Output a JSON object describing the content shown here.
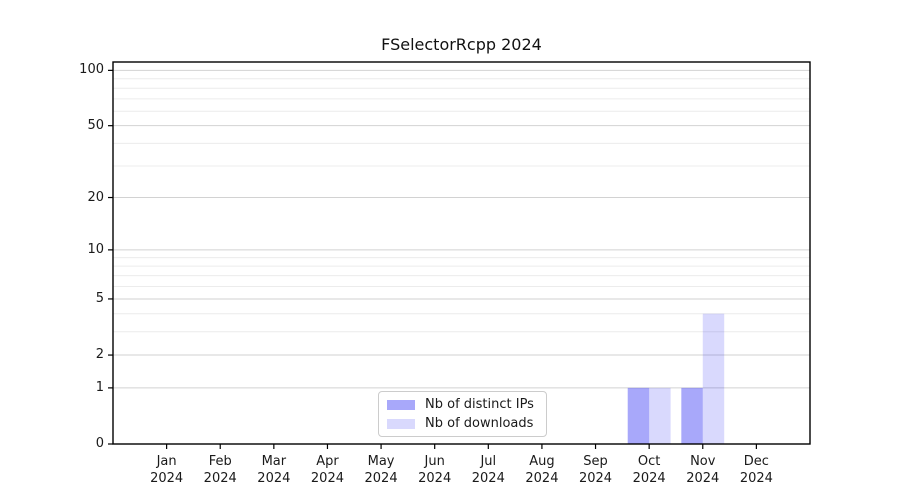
{
  "chart_data": {
    "type": "bar",
    "title": "FSelectorRcpp 2024",
    "categories": [
      "Jan",
      "Feb",
      "Mar",
      "Apr",
      "May",
      "Jun",
      "Jul",
      "Aug",
      "Sep",
      "Oct",
      "Nov",
      "Dec"
    ],
    "x_tick_year": "2024",
    "series": [
      {
        "name": "Nb of distinct IPs",
        "color": "rgba(0,0,240,0.34)",
        "values": [
          0,
          0,
          0,
          0,
          0,
          0,
          0,
          0,
          0,
          1,
          1,
          0
        ]
      },
      {
        "name": "Nb of downloads",
        "color": "rgba(0,0,240,0.15)",
        "values": [
          0,
          0,
          0,
          0,
          0,
          0,
          0,
          0,
          0,
          1,
          4,
          0
        ]
      }
    ],
    "yscale": "log1p",
    "ylim": [
      0,
      111
    ],
    "yticks": [
      0,
      1,
      2,
      5,
      10,
      20,
      50,
      100
    ],
    "yticks_minor": [
      3,
      4,
      6,
      7,
      8,
      9,
      30,
      40,
      60,
      70,
      80,
      90
    ],
    "grid": "horizontal-major-and-minor",
    "legend_position": "inside-bottom-center",
    "bar_width_fraction": 0.4
  },
  "style": {
    "background": "#ffffff",
    "grid_major_color": "#d2d2d2",
    "grid_minor_color": "#ececec",
    "spine_color": "#000000",
    "tick_color": "#000000",
    "text_color": "#1a1a1a",
    "legend_border_color": "#cccccc"
  }
}
